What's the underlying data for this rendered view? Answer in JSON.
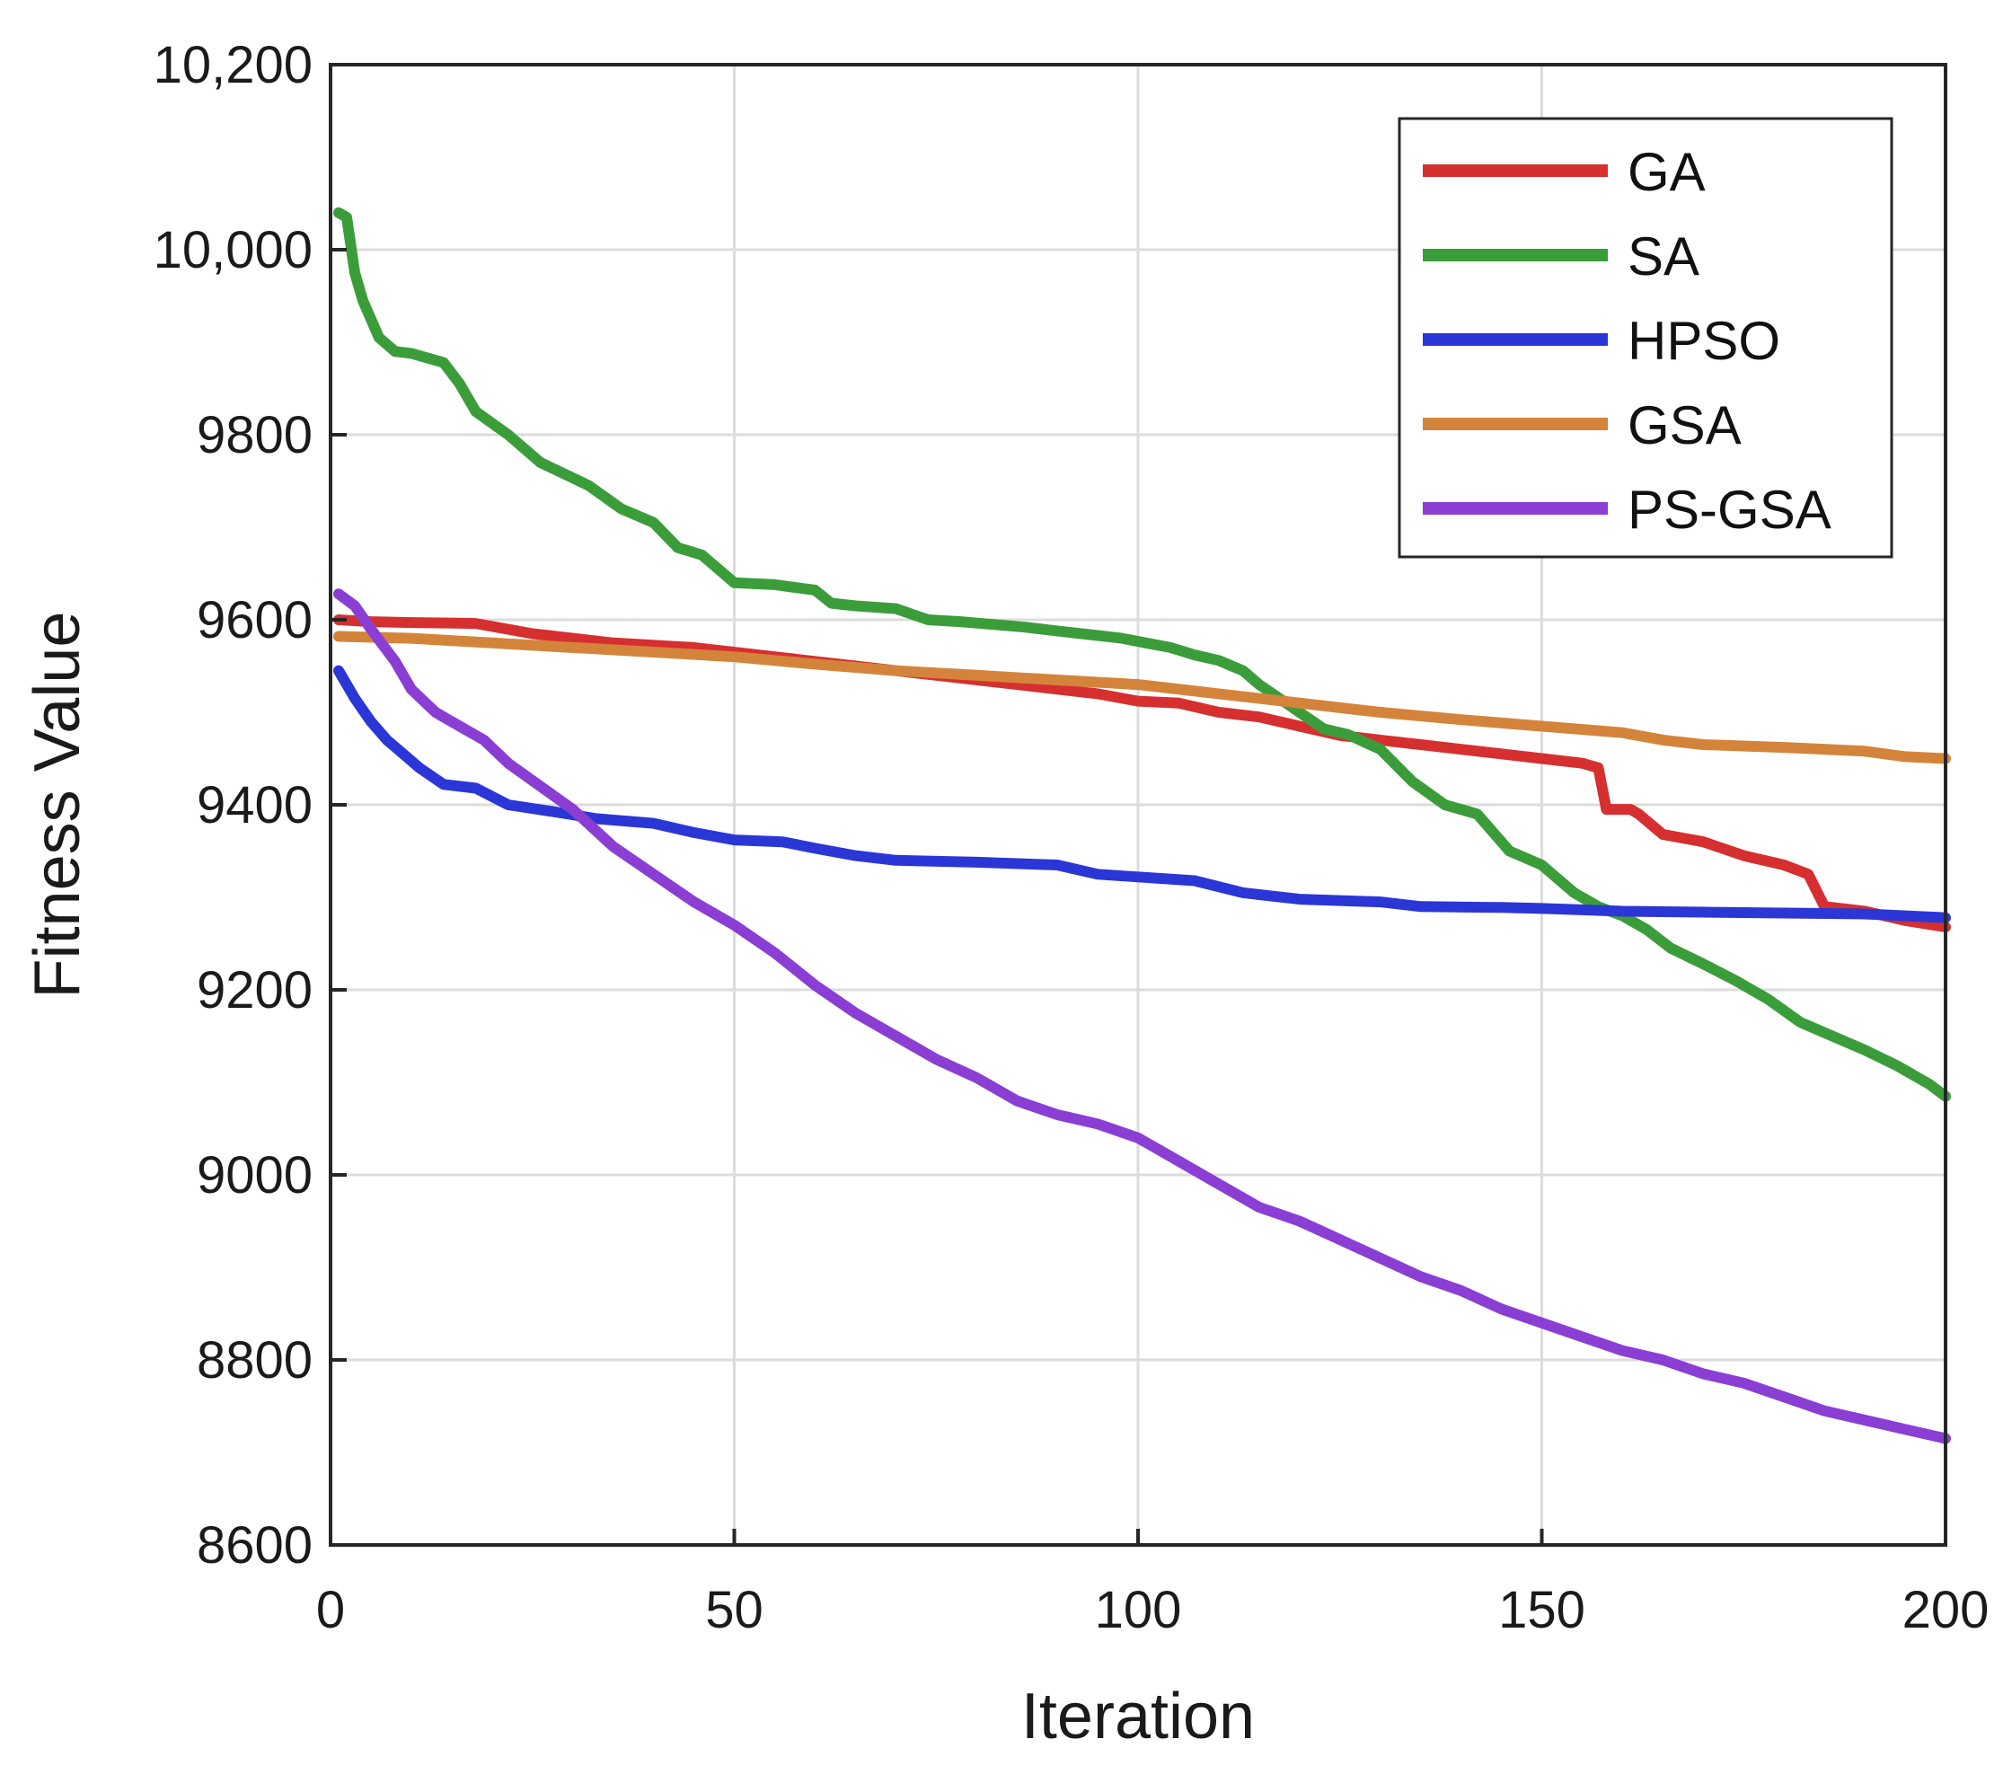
{
  "chart_data": {
    "type": "line",
    "title": "",
    "xlabel": "Iteration",
    "ylabel": "Fitness Value",
    "xlim": [
      0,
      200
    ],
    "ylim": [
      8600,
      10200
    ],
    "xticks": [
      0,
      50,
      100,
      150,
      200
    ],
    "xtick_labels": [
      "0",
      "50",
      "100",
      "150",
      "200"
    ],
    "yticks": [
      8600,
      8800,
      9000,
      9200,
      9400,
      9600,
      9800,
      10000,
      10200
    ],
    "ytick_labels": [
      "8600",
      "8800",
      "9000",
      "9200",
      "9400",
      "9600",
      "9800",
      "10,000",
      "10,200"
    ],
    "grid": true,
    "legend_position": "top-right",
    "series": [
      {
        "name": "GA",
        "color": "#d62f2f",
        "x": [
          1,
          5,
          10,
          18,
          25,
          35,
          45,
          55,
          65,
          75,
          85,
          95,
          100,
          105,
          110,
          115,
          120,
          125,
          130,
          135,
          140,
          145,
          150,
          155,
          157,
          158,
          161,
          162,
          165,
          170,
          175,
          180,
          183,
          185,
          190,
          195,
          200
        ],
        "y": [
          9600,
          9598,
          9597,
          9596,
          9585,
          9575,
          9570,
          9560,
          9550,
          9540,
          9530,
          9520,
          9512,
          9510,
          9500,
          9495,
          9485,
          9475,
          9470,
          9465,
          9460,
          9455,
          9450,
          9445,
          9440,
          9395,
          9395,
          9390,
          9368,
          9360,
          9345,
          9335,
          9325,
          9290,
          9285,
          9275,
          9268
        ]
      },
      {
        "name": "SA",
        "color": "#3a9d3a",
        "x": [
          1,
          2,
          3,
          4,
          6,
          8,
          10,
          14,
          16,
          18,
          22,
          26,
          32,
          36,
          40,
          43,
          46,
          48,
          50,
          55,
          60,
          62,
          65,
          70,
          74,
          78,
          82,
          86,
          90,
          94,
          98,
          101,
          104,
          107,
          110,
          113,
          115,
          118,
          120,
          123,
          126,
          130,
          134,
          138,
          142,
          146,
          150,
          154,
          157,
          160,
          163,
          166,
          170,
          174,
          178,
          182,
          186,
          190,
          194,
          198,
          200
        ],
        "y": [
          10040,
          10035,
          9975,
          9945,
          9905,
          9890,
          9888,
          9878,
          9855,
          9825,
          9800,
          9770,
          9745,
          9720,
          9705,
          9678,
          9670,
          9655,
          9640,
          9638,
          9632,
          9618,
          9615,
          9612,
          9600,
          9598,
          9595,
          9592,
          9588,
          9584,
          9580,
          9575,
          9570,
          9562,
          9556,
          9545,
          9530,
          9512,
          9500,
          9482,
          9476,
          9460,
          9425,
          9400,
          9390,
          9350,
          9335,
          9305,
          9290,
          9280,
          9265,
          9245,
          9228,
          9210,
          9190,
          9165,
          9150,
          9135,
          9118,
          9098,
          9085
        ]
      },
      {
        "name": "HPSO",
        "color": "#2b36d6",
        "x": [
          1,
          3,
          5,
          7,
          9,
          11,
          14,
          18,
          22,
          28,
          33,
          40,
          45,
          50,
          56,
          60,
          65,
          70,
          80,
          90,
          95,
          100,
          107,
          113,
          120,
          130,
          135,
          145,
          150,
          160,
          170,
          180,
          190,
          200
        ],
        "y": [
          9545,
          9515,
          9490,
          9470,
          9455,
          9440,
          9422,
          9418,
          9400,
          9392,
          9385,
          9380,
          9370,
          9362,
          9360,
          9353,
          9345,
          9340,
          9338,
          9335,
          9325,
          9322,
          9318,
          9305,
          9298,
          9295,
          9290,
          9289,
          9288,
          9285,
          9284,
          9283,
          9282,
          9278
        ]
      },
      {
        "name": "GSA",
        "color": "#d4843a",
        "x": [
          1,
          10,
          20,
          30,
          40,
          50,
          60,
          70,
          80,
          90,
          100,
          110,
          120,
          130,
          140,
          150,
          160,
          165,
          170,
          180,
          190,
          195,
          200
        ],
        "y": [
          9582,
          9580,
          9575,
          9570,
          9565,
          9560,
          9552,
          9545,
          9540,
          9535,
          9530,
          9520,
          9510,
          9500,
          9492,
          9485,
          9478,
          9470,
          9465,
          9462,
          9458,
          9452,
          9450
        ]
      },
      {
        "name": "PS-GSA",
        "color": "#8a3ed4",
        "x": [
          1,
          3,
          5,
          8,
          10,
          13,
          16,
          19,
          22,
          26,
          30,
          35,
          40,
          45,
          50,
          55,
          60,
          65,
          70,
          75,
          80,
          85,
          90,
          95,
          100,
          105,
          110,
          115,
          120,
          125,
          130,
          135,
          140,
          145,
          150,
          155,
          160,
          165,
          170,
          175,
          180,
          185,
          190,
          195,
          200
        ],
        "y": [
          9628,
          9615,
          9590,
          9555,
          9525,
          9500,
          9485,
          9470,
          9445,
          9420,
          9395,
          9355,
          9325,
          9295,
          9270,
          9240,
          9205,
          9175,
          9150,
          9125,
          9105,
          9080,
          9065,
          9055,
          9040,
          9015,
          8990,
          8965,
          8950,
          8930,
          8910,
          8890,
          8875,
          8855,
          8840,
          8825,
          8810,
          8800,
          8785,
          8775,
          8760,
          8745,
          8735,
          8725,
          8715
        ]
      }
    ]
  }
}
